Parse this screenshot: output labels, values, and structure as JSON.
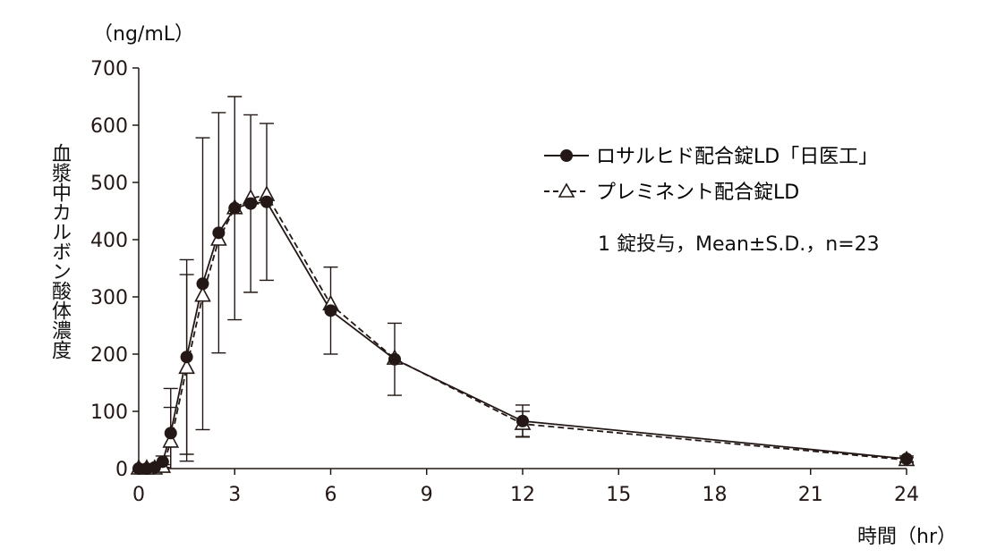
{
  "chart_data": {
    "type": "line",
    "unit_label": "（ng/mL）",
    "ylabel": "血漿中カルボン酸体濃度",
    "xlabel": "時間（hr）",
    "xlim": [
      0,
      24
    ],
    "ylim": [
      0,
      700
    ],
    "xticks": [
      0,
      3,
      6,
      9,
      12,
      15,
      18,
      21,
      24
    ],
    "yticks": [
      0,
      100,
      200,
      300,
      400,
      500,
      600,
      700
    ],
    "note": "1 錠投与，Mean±S.D.，n=23",
    "legend_position": "top-right",
    "grid": false,
    "x": [
      0,
      0.25,
      0.5,
      0.75,
      1,
      1.5,
      2,
      2.5,
      3,
      3.5,
      4,
      6,
      8,
      12,
      24
    ],
    "series": [
      {
        "name": "ロサルヒド配合錠LD「日医工」",
        "marker": "filled-circle",
        "line": "solid",
        "color": "#231815",
        "values": [
          0,
          0,
          2,
          12,
          62,
          195,
          323,
          412,
          455,
          463,
          466,
          276,
          191,
          83,
          17
        ],
        "sd": [
          0,
          0,
          2,
          10,
          78,
          170,
          255,
          210,
          195,
          155,
          137,
          76,
          63,
          28,
          5
        ]
      },
      {
        "name": "プレミネント配合錠LD",
        "marker": "open-triangle",
        "line": "dashed",
        "color": "#231815",
        "values": [
          0,
          0,
          0,
          3,
          47,
          176,
          302,
          400,
          455,
          472,
          478,
          287,
          192,
          78,
          15
        ],
        "sd": [
          0,
          0,
          0,
          4,
          60,
          163,
          0,
          0,
          0,
          0,
          0,
          0,
          0,
          22,
          4
        ]
      }
    ]
  }
}
